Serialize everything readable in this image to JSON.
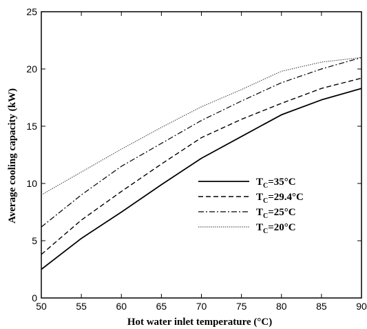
{
  "chart_data": {
    "type": "line",
    "xlabel": "Hot water inlet temperature (°C)",
    "ylabel": "Average cooling capacity (kW)",
    "xlim": [
      50,
      90
    ],
    "ylim": [
      0,
      25
    ],
    "xticks": [
      50,
      55,
      60,
      65,
      70,
      75,
      80,
      85,
      90
    ],
    "yticks": [
      0,
      5,
      10,
      15,
      20,
      25
    ],
    "grid": false,
    "legend_position": "center-right",
    "series": [
      {
        "name": "T_C=35°C",
        "label_main": "T",
        "label_sub": "C",
        "label_rest": "=35°C",
        "dash": "solid",
        "x": [
          50,
          55,
          60,
          65,
          70,
          75,
          80,
          85,
          90
        ],
        "y": [
          2.5,
          5.2,
          7.5,
          9.9,
          12.2,
          14.1,
          16.0,
          17.3,
          18.3
        ]
      },
      {
        "name": "T_C=29.4°C",
        "label_main": "T",
        "label_sub": "C",
        "label_rest": "=29.4°C",
        "dash": "dashed",
        "x": [
          50,
          55,
          60,
          65,
          70,
          75,
          80,
          85,
          90
        ],
        "y": [
          3.8,
          6.8,
          9.3,
          11.7,
          14.0,
          15.6,
          17.0,
          18.3,
          19.2
        ]
      },
      {
        "name": "T_C=25°C",
        "label_main": "T",
        "label_sub": "C",
        "label_rest": "=25°C",
        "dash": "dashdot",
        "x": [
          50,
          55,
          60,
          65,
          70,
          75,
          80,
          85,
          90
        ],
        "y": [
          6.2,
          9.0,
          11.5,
          13.5,
          15.5,
          17.2,
          18.8,
          20.0,
          21.0
        ]
      },
      {
        "name": "T_C=20°C",
        "label_main": "T",
        "label_sub": "C",
        "label_rest": "=20°C",
        "dash": "dotted",
        "x": [
          50,
          55,
          60,
          65,
          70,
          75,
          80,
          85,
          90
        ],
        "y": [
          9.0,
          11.0,
          13.0,
          14.9,
          16.7,
          18.2,
          19.8,
          20.6,
          21.0
        ]
      }
    ]
  }
}
